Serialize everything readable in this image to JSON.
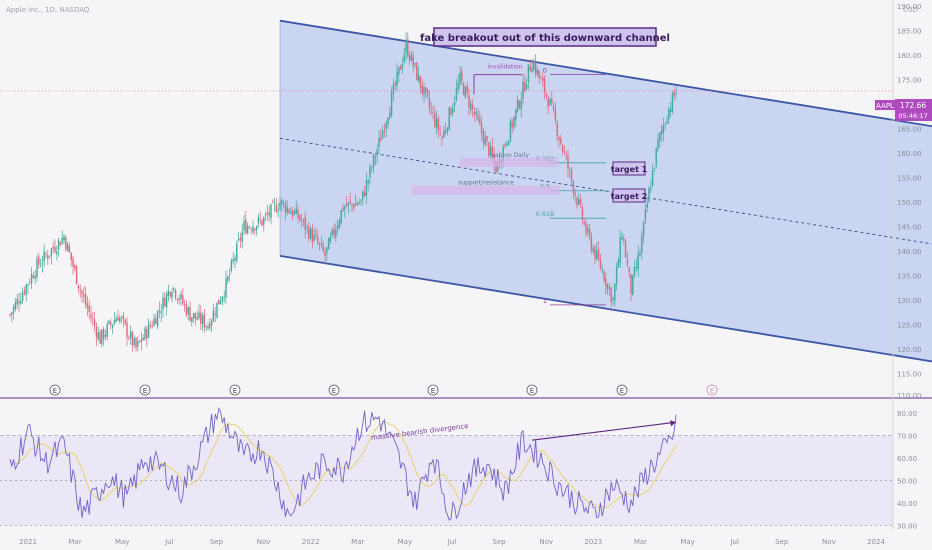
{
  "header": {
    "symbol_label": "Apple Inc., 1D, NASDAQ",
    "currency": "USD"
  },
  "chart_data": {
    "type": "candlestick",
    "title": "",
    "x_tick_labels": [
      "2021",
      "Mar",
      "May",
      "Jul",
      "Sep",
      "Nov",
      "2022",
      "Mar",
      "May",
      "Jul",
      "Sep",
      "Nov",
      "2023",
      "Mar",
      "May",
      "Jul",
      "Sep",
      "Nov",
      "2024"
    ],
    "price_axis": {
      "ylim": [
        110,
        190
      ],
      "tick_labels": [
        "115.00",
        "120.00",
        "125.00",
        "130.00",
        "135.00",
        "140.00",
        "145.00",
        "150.00",
        "155.00",
        "160.00",
        "165.00",
        "170.00",
        "175.00",
        "180.00",
        "185.00",
        "190.00"
      ],
      "bottom_label": "110.00"
    },
    "last_price": {
      "symbol": "AAPL",
      "value": "172.66",
      "countdown": "05:46:17",
      "price": 172.66
    },
    "price_series_approx": [
      {
        "t": 0,
        "v": 127
      },
      {
        "t": 3,
        "v": 137
      },
      {
        "t": 6,
        "v": 143
      },
      {
        "t": 8,
        "v": 131
      },
      {
        "t": 10,
        "v": 122
      },
      {
        "t": 12,
        "v": 127
      },
      {
        "t": 14,
        "v": 120
      },
      {
        "t": 16,
        "v": 126
      },
      {
        "t": 18,
        "v": 133
      },
      {
        "t": 20,
        "v": 127
      },
      {
        "t": 22,
        "v": 125
      },
      {
        "t": 24,
        "v": 133
      },
      {
        "t": 26,
        "v": 145
      },
      {
        "t": 28,
        "v": 146
      },
      {
        "t": 30,
        "v": 150
      },
      {
        "t": 32,
        "v": 147
      },
      {
        "t": 34,
        "v": 142
      },
      {
        "t": 35,
        "v": 139
      },
      {
        "t": 37,
        "v": 149
      },
      {
        "t": 39,
        "v": 150
      },
      {
        "t": 41,
        "v": 162
      },
      {
        "t": 43,
        "v": 175
      },
      {
        "t": 44,
        "v": 182
      },
      {
        "t": 46,
        "v": 172
      },
      {
        "t": 48,
        "v": 163
      },
      {
        "t": 50,
        "v": 175
      },
      {
        "t": 52,
        "v": 166
      },
      {
        "t": 54,
        "v": 157
      },
      {
        "t": 56,
        "v": 167
      },
      {
        "t": 58,
        "v": 179
      },
      {
        "t": 60,
        "v": 170
      },
      {
        "t": 62,
        "v": 157
      },
      {
        "t": 64,
        "v": 144
      },
      {
        "t": 66,
        "v": 135
      },
      {
        "t": 67,
        "v": 130
      },
      {
        "t": 68,
        "v": 144
      },
      {
        "t": 69,
        "v": 132
      },
      {
        "t": 70,
        "v": 140
      },
      {
        "t": 71,
        "v": 152
      },
      {
        "t": 72,
        "v": 162
      },
      {
        "t": 73,
        "v": 168
      },
      {
        "t": 74,
        "v": 172.66
      }
    ],
    "channel": {
      "upper": [
        {
          "t": 30,
          "v": 187
        },
        {
          "t": 104,
          "v": 165
        }
      ],
      "mid": [
        {
          "t": 30,
          "v": 163
        },
        {
          "t": 104,
          "v": 141
        }
      ],
      "lower": [
        {
          "t": 30,
          "v": 139
        },
        {
          "t": 104,
          "v": 117
        }
      ]
    },
    "fib_levels": [
      {
        "label": "0",
        "value": 176,
        "name": "invalidation"
      },
      {
        "label": "0.382",
        "value": 158,
        "name": "gap on Daily"
      },
      {
        "label": "0.5",
        "value": 152.3,
        "name": "support/resistance"
      },
      {
        "label": "0.618",
        "value": 146.7,
        "name": ""
      },
      {
        "label": "1",
        "value": 129,
        "name": ""
      }
    ],
    "annotations": {
      "main": "fake breakout out of this downward channel",
      "target1": "target 1",
      "target2": "target 2",
      "divergence": "massive bearish divergence"
    },
    "earnings_markers": {
      "label": "E",
      "t": [
        5,
        15,
        25,
        36,
        47,
        58,
        68,
        78
      ]
    },
    "rsi": {
      "ylim": [
        28,
        85
      ],
      "tick_labels": [
        "30.00",
        "40.00",
        "50.00",
        "60.00",
        "70.00",
        "80.00"
      ],
      "overbought": 70,
      "oversold": 30,
      "mid": 50,
      "series_approx": [
        {
          "t": 0,
          "v": 55
        },
        {
          "t": 2,
          "v": 72
        },
        {
          "t": 4,
          "v": 58
        },
        {
          "t": 6,
          "v": 66
        },
        {
          "t": 8,
          "v": 35
        },
        {
          "t": 9,
          "v": 40
        },
        {
          "t": 11,
          "v": 52
        },
        {
          "t": 13,
          "v": 42
        },
        {
          "t": 15,
          "v": 60
        },
        {
          "t": 17,
          "v": 55
        },
        {
          "t": 19,
          "v": 45
        },
        {
          "t": 21,
          "v": 62
        },
        {
          "t": 23,
          "v": 80
        },
        {
          "t": 24,
          "v": 75
        },
        {
          "t": 26,
          "v": 60
        },
        {
          "t": 28,
          "v": 65
        },
        {
          "t": 30,
          "v": 45
        },
        {
          "t": 31,
          "v": 34
        },
        {
          "t": 33,
          "v": 50
        },
        {
          "t": 35,
          "v": 58
        },
        {
          "t": 37,
          "v": 55
        },
        {
          "t": 39,
          "v": 75
        },
        {
          "t": 41,
          "v": 78
        },
        {
          "t": 43,
          "v": 62
        },
        {
          "t": 45,
          "v": 40
        },
        {
          "t": 47,
          "v": 62
        },
        {
          "t": 49,
          "v": 33
        },
        {
          "t": 51,
          "v": 52
        },
        {
          "t": 53,
          "v": 58
        },
        {
          "t": 55,
          "v": 45
        },
        {
          "t": 57,
          "v": 68
        },
        {
          "t": 59,
          "v": 60
        },
        {
          "t": 61,
          "v": 48
        },
        {
          "t": 63,
          "v": 40
        },
        {
          "t": 65,
          "v": 35
        },
        {
          "t": 67,
          "v": 48
        },
        {
          "t": 69,
          "v": 40
        },
        {
          "t": 71,
          "v": 55
        },
        {
          "t": 73,
          "v": 65
        },
        {
          "t": 74,
          "v": 74
        }
      ],
      "divergence": [
        {
          "t": 58,
          "v": 68
        },
        {
          "t": 74,
          "v": 76
        }
      ]
    }
  },
  "colors": {
    "background": "#f5f5f7",
    "channel_fill": "#b9c9ef",
    "channel_line": "#3b56a5",
    "candle_up": "#3fa89a",
    "candle_down": "#e0657a",
    "annotation_fill": "#cfc4ee",
    "annotation_border": "#5b2a86",
    "rsi_line": "#7164c9",
    "rsi_ma": "#e8d36b",
    "price_line": "#e0657a",
    "axis_text": "#8a8f9c"
  }
}
